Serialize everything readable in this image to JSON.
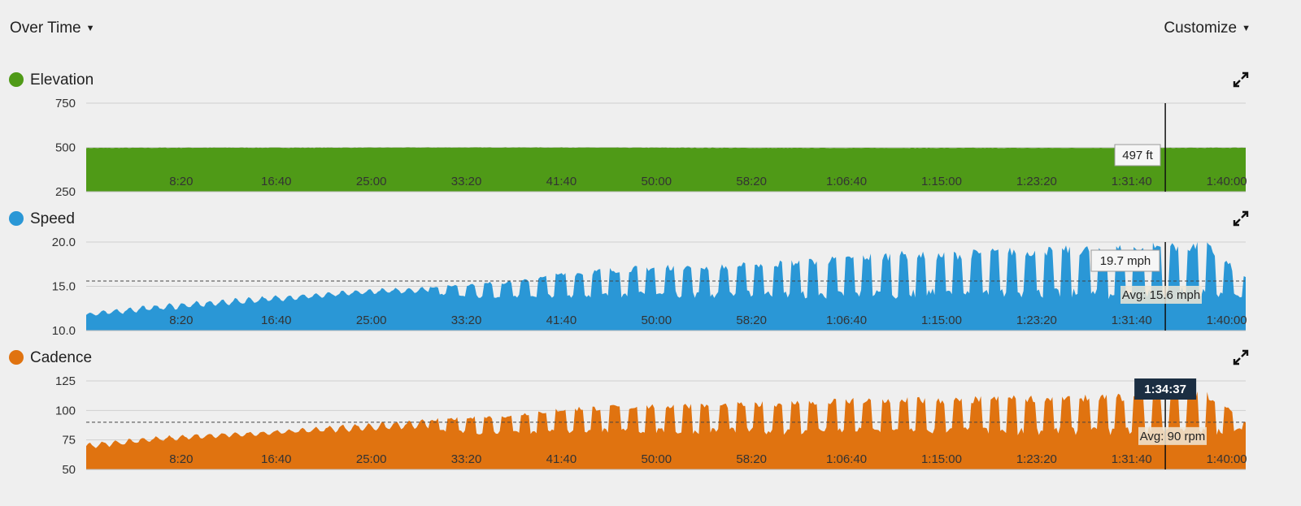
{
  "header": {
    "view_label": "Over Time",
    "customize_label": "Customize"
  },
  "icons": {
    "dropdown": "caret-down-icon",
    "expand": "expand-icon"
  },
  "cursor": {
    "time": "1:34:37",
    "time_seconds": 5677
  },
  "chart_data": [
    {
      "type": "area",
      "title": "Elevation",
      "color": "#4f9a17",
      "ylim": [
        250,
        750
      ],
      "yticks": [
        "750",
        "500",
        "250"
      ],
      "ytick_values": [
        750,
        500,
        250
      ],
      "xlim_seconds": [
        0,
        6100
      ],
      "xticks": [
        "8:20",
        "16:40",
        "25:00",
        "33:20",
        "41:40",
        "50:00",
        "58:20",
        "1:06:40",
        "1:15:00",
        "1:23:20",
        "1:31:40",
        "1:40:00"
      ],
      "xtick_seconds": [
        500,
        1000,
        1500,
        2000,
        2500,
        3000,
        3500,
        4000,
        4500,
        5000,
        5500,
        6000
      ],
      "x": [
        0,
        600,
        1200,
        1800,
        2400,
        3000,
        3600,
        4200,
        4800,
        5400,
        5677,
        6100
      ],
      "values": [
        497,
        498,
        498,
        499,
        499,
        498,
        497,
        497,
        497,
        497,
        497,
        498
      ],
      "grid": true,
      "hover_value": "497 ft"
    },
    {
      "type": "area",
      "title": "Speed",
      "color": "#2a97d6",
      "ylim": [
        10,
        20
      ],
      "yticks": [
        "20.0",
        "15.0",
        "10.0"
      ],
      "ytick_values": [
        20,
        15,
        10
      ],
      "xlim_seconds": [
        0,
        6100
      ],
      "xticks": [
        "8:20",
        "16:40",
        "25:00",
        "33:20",
        "41:40",
        "50:00",
        "58:20",
        "1:06:40",
        "1:15:00",
        "1:23:20",
        "1:31:40",
        "1:40:00"
      ],
      "xtick_seconds": [
        500,
        1000,
        1500,
        2000,
        2500,
        3000,
        3500,
        4000,
        4500,
        5000,
        5500,
        6000
      ],
      "x": [
        0,
        300,
        600,
        900,
        1200,
        1500,
        1800,
        2100,
        2300,
        2500,
        2700,
        2900,
        3100,
        3300,
        3500,
        3700,
        3900,
        4100,
        4300,
        4500,
        4700,
        4900,
        5100,
        5300,
        5500,
        5700,
        5900,
        6100
      ],
      "values": [
        12.0,
        12.8,
        13.3,
        13.8,
        14.2,
        14.7,
        14.9,
        15.3,
        15.6,
        16.3,
        16.7,
        17.0,
        17.2,
        17.1,
        17.4,
        17.6,
        17.9,
        18.3,
        18.5,
        18.4,
        18.7,
        18.9,
        19.0,
        19.1,
        19.2,
        19.6,
        19.4,
        15.8
      ],
      "lows": [
        11.5,
        12.0,
        12.5,
        13.0,
        13.5,
        14.0,
        14.2,
        13.8,
        13.9,
        14.0,
        14.0,
        14.1,
        14.1,
        14.0,
        14.2,
        14.1,
        14.0,
        14.2,
        14.1,
        14.3,
        14.2,
        14.3,
        14.2,
        14.1,
        14.2,
        14.3,
        14.2,
        13.8
      ],
      "average": 15.6,
      "average_label": "Avg: 15.6 mph",
      "grid": true,
      "hover_value": "19.7 mph"
    },
    {
      "type": "area",
      "title": "Cadence",
      "color": "#e07310",
      "ylim": [
        50,
        125
      ],
      "yticks": [
        "125",
        "100",
        "75",
        "50"
      ],
      "ytick_values": [
        125,
        100,
        75,
        50
      ],
      "xlim_seconds": [
        0,
        6100
      ],
      "xticks": [
        "8:20",
        "16:40",
        "25:00",
        "33:20",
        "41:40",
        "50:00",
        "58:20",
        "1:06:40",
        "1:15:00",
        "1:23:20",
        "1:31:40",
        "1:40:00"
      ],
      "xtick_seconds": [
        500,
        1000,
        1500,
        2000,
        2500,
        3000,
        3500,
        4000,
        4500,
        5000,
        5500,
        6000
      ],
      "x": [
        0,
        300,
        600,
        900,
        1200,
        1500,
        1800,
        2100,
        2300,
        2500,
        2700,
        2900,
        3100,
        3300,
        3500,
        3700,
        3900,
        4100,
        4300,
        4500,
        4700,
        4900,
        5100,
        5300,
        5500,
        5700,
        5900,
        6100
      ],
      "values": [
        72,
        77,
        80,
        82,
        86,
        89,
        92,
        94,
        97,
        101,
        102,
        103,
        104,
        104,
        105,
        106,
        107,
        108,
        109,
        108,
        109,
        110,
        110,
        111,
        111,
        112,
        113,
        90
      ],
      "lows": [
        66,
        72,
        75,
        78,
        80,
        82,
        83,
        81,
        82,
        82,
        83,
        83,
        82,
        83,
        83,
        82,
        83,
        83,
        82,
        83,
        83,
        82,
        83,
        82,
        83,
        83,
        82,
        84
      ],
      "average": 90,
      "average_label": "Avg: 90 rpm",
      "grid": true
    }
  ]
}
